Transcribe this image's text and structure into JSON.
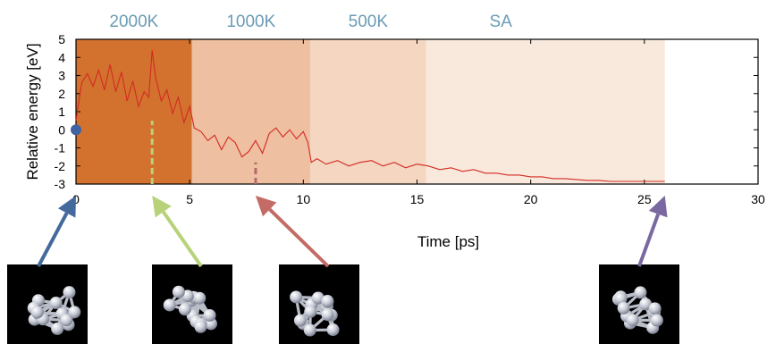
{
  "chart_data": {
    "type": "line",
    "title": "",
    "xlabel": "Time [ps]",
    "ylabel": "Relative energy [eV]",
    "xlim": [
      0,
      30
    ],
    "ylim": [
      -3,
      5
    ],
    "x_ticks": [
      0,
      5,
      10,
      15,
      20,
      25,
      30
    ],
    "y_ticks": [
      5,
      4,
      3,
      2,
      1,
      0,
      -1,
      -2,
      -3
    ],
    "grid": false,
    "legend": "none",
    "phases": [
      {
        "label": "2000K",
        "x_start": 0,
        "x_end": 5.1,
        "color": "#d2722e"
      },
      {
        "label": "1000K",
        "x_start": 5.1,
        "x_end": 10.3,
        "color": "#eebfa0"
      },
      {
        "label": "500K",
        "x_start": 10.3,
        "x_end": 15.4,
        "color": "#f4d6c1"
      },
      {
        "label": "SA",
        "x_start": 15.4,
        "x_end": 25.9,
        "color": "#f8e9dc"
      }
    ],
    "phase_label_color": "#6b9cb4",
    "line_color": "#d42a22",
    "series": [
      {
        "x": [
          0,
          0.25,
          0.5,
          0.75,
          1.0,
          1.25,
          1.5,
          1.75,
          2.0,
          2.25,
          2.5,
          2.75,
          3.0,
          3.2,
          3.35,
          3.5,
          3.75,
          4.0,
          4.25,
          4.5,
          4.75,
          5.0,
          5.2,
          5.5,
          5.8,
          6.1,
          6.4,
          6.7,
          7.0,
          7.3,
          7.6,
          7.9,
          8.2,
          8.5,
          8.8,
          9.1,
          9.4,
          9.7,
          10.0,
          10.2,
          10.35,
          10.6,
          11.0,
          11.5,
          12.0,
          12.5,
          13.0,
          13.5,
          14.0,
          14.5,
          15.0,
          15.5,
          16.0,
          16.5,
          17.0,
          17.5,
          18.0,
          18.5,
          19.0,
          19.5,
          20.0,
          20.5,
          21.0,
          21.5,
          22.0,
          22.5,
          23.0,
          23.5,
          24.0,
          24.5,
          25.0,
          25.5,
          25.9
        ],
        "values": [
          0.5,
          2.6,
          3.1,
          2.4,
          3.3,
          2.2,
          3.6,
          2.1,
          3.2,
          1.6,
          2.7,
          1.3,
          2.1,
          1.8,
          4.4,
          2.9,
          1.6,
          2.2,
          0.9,
          1.8,
          0.4,
          1.3,
          0.1,
          -0.1,
          -0.6,
          -0.3,
          -1.1,
          -0.4,
          -0.7,
          -1.5,
          -1.2,
          -0.6,
          -1.3,
          -0.2,
          0.1,
          -0.4,
          0.0,
          -0.5,
          -0.1,
          -0.7,
          -1.8,
          -1.6,
          -1.9,
          -1.7,
          -2.0,
          -1.8,
          -1.7,
          -2.0,
          -1.8,
          -2.1,
          -1.9,
          -2.0,
          -2.2,
          -2.1,
          -2.3,
          -2.2,
          -2.4,
          -2.4,
          -2.5,
          -2.5,
          -2.6,
          -2.6,
          -2.7,
          -2.7,
          -2.75,
          -2.8,
          -2.8,
          -2.85,
          -2.85,
          -2.85,
          -2.85,
          -2.85,
          -2.85
        ]
      }
    ],
    "markers": [
      {
        "x": 0,
        "y": 0,
        "kind": "dot",
        "color": "#3f62a0"
      },
      {
        "x": 3.35,
        "kind": "dashed-line",
        "y_from": -3,
        "y_to": 0.5,
        "color": "#b8d27a"
      },
      {
        "x": 7.9,
        "kind": "dashed-line",
        "y_from": -3,
        "y_to": -1.8,
        "color": "#b46a6a"
      }
    ],
    "snapshots": [
      {
        "name": "cluster-snapshot-initial",
        "points_to_x": 0,
        "arrow_color": "#44699c"
      },
      {
        "name": "cluster-snapshot-2000k",
        "points_to_x": 3.35,
        "arrow_color": "#b8d27a"
      },
      {
        "name": "cluster-snapshot-1000k",
        "points_to_x": 7.9,
        "arrow_color": "#c46b66"
      },
      {
        "name": "cluster-snapshot-final",
        "points_to_x": 25.9,
        "arrow_color": "#7a69a0"
      }
    ]
  }
}
